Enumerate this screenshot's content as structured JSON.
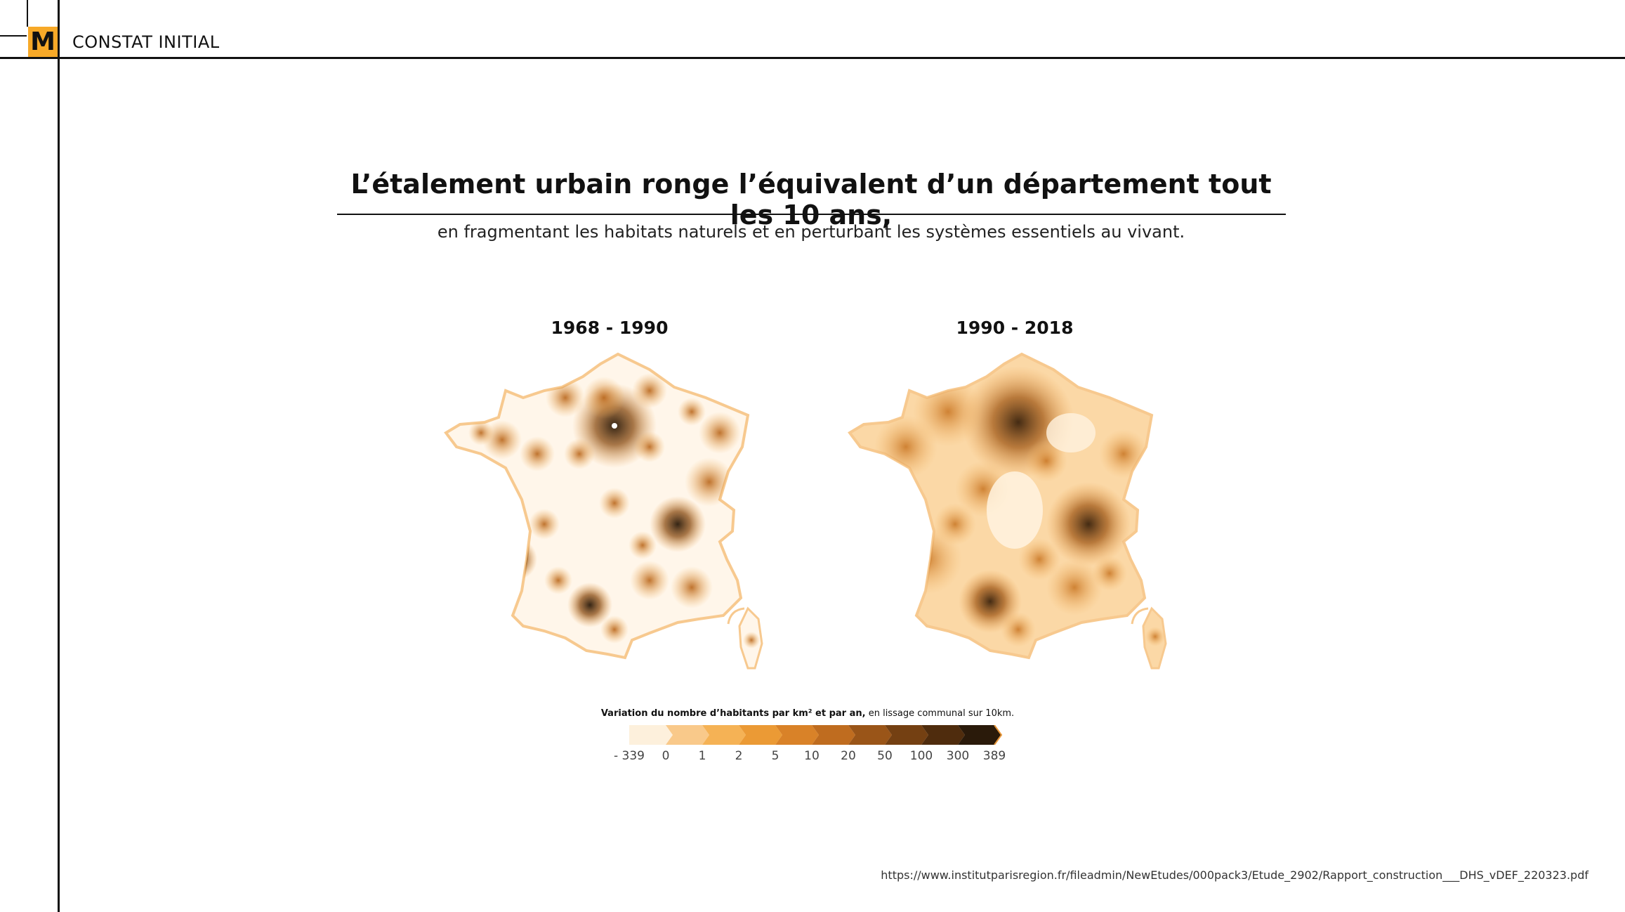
{
  "header": {
    "logo_letter": "M",
    "section_label": "CONSTAT INITIAL"
  },
  "headline": {
    "title": "L’étalement urbain ronge l’équivalent d’un département tout les 10 ans,",
    "subtitle": "en fragmentant les habitats naturels et en perturbant les systèmes essentiels au vivant."
  },
  "maps": [
    {
      "period": "1968 - 1990"
    },
    {
      "period": "1990 - 2018"
    }
  ],
  "legend": {
    "title_bold": "Variation du nombre d’habitants par km² et par an,",
    "title_rest": " en lissage communal sur 10km.",
    "labels": [
      "- 339",
      "0",
      "1",
      "2",
      "5",
      "10",
      "20",
      "50",
      "100",
      "300",
      "389"
    ],
    "colors": [
      "#fdf0dc",
      "#f9c98a",
      "#f5b255",
      "#eb9a35",
      "#d98228",
      "#bf6c1f",
      "#9a5518",
      "#744012",
      "#4f2c0d",
      "#2a1a0a"
    ]
  },
  "source": "https://www.institutparisregion.fr/fileadmin/NewEtudes/000pack3/Etude_2902/Rapport_construction___DHS_vDEF_220323.pdf"
}
